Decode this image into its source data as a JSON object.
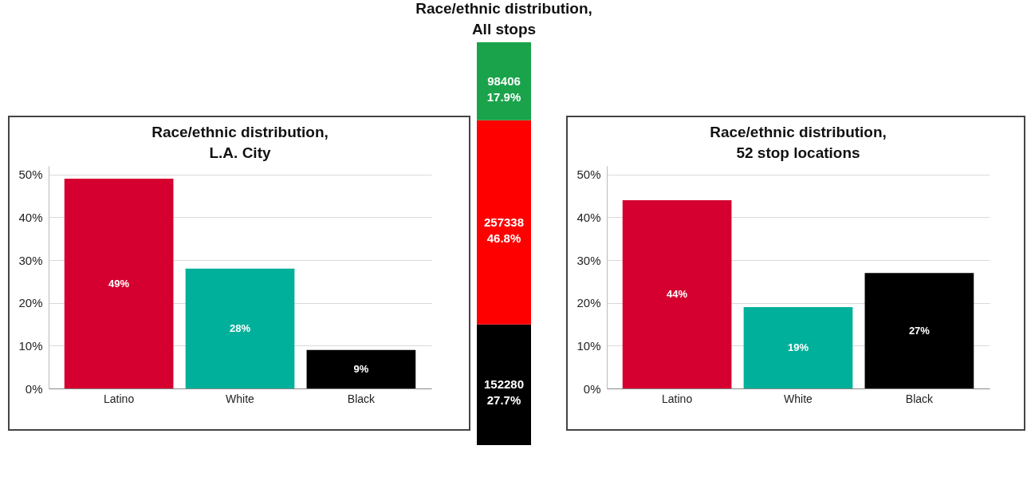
{
  "chart_data": [
    {
      "type": "bar",
      "title": "Race/ethnic distribution,\nL.A. City",
      "categories": [
        "Latino",
        "White",
        "Black"
      ],
      "values": [
        49,
        28,
        9
      ],
      "colors": [
        "#d5002f",
        "#00b09a",
        "#000000"
      ],
      "value_labels": [
        "49%",
        "28%",
        "9%"
      ],
      "ylim": [
        0,
        52
      ],
      "yticks": [
        {
          "value": 0,
          "label": "0%"
        },
        {
          "value": 10,
          "label": "10%"
        },
        {
          "value": 20,
          "label": "20%"
        },
        {
          "value": 30,
          "label": "30%"
        },
        {
          "value": 40,
          "label": "40%"
        },
        {
          "value": 50,
          "label": "50%"
        }
      ],
      "grid": "y"
    },
    {
      "type": "bar",
      "title": "Race/ethnic distribution,\nAll stops",
      "stacked": true,
      "categories": [
        null
      ],
      "series": [
        {
          "color": "#000000",
          "values": [
            152280
          ],
          "value_labels": [
            "152280\n27.7%"
          ]
        },
        {
          "color": "#ff0000",
          "values": [
            257338
          ],
          "value_labels": [
            "257338\n46.8%"
          ]
        },
        {
          "color": "#1aa34a",
          "values": [
            98406
          ],
          "value_labels": [
            "98406\n17.9%"
          ]
        }
      ],
      "ylim": [
        0,
        508024
      ],
      "tick_labels": false
    },
    {
      "type": "bar",
      "title": "Race/ethnic distribution,\n52 stop locations",
      "categories": [
        "Latino",
        "White",
        "Black"
      ],
      "values": [
        44,
        19,
        27
      ],
      "colors": [
        "#d5002f",
        "#00b09a",
        "#000000"
      ],
      "value_labels": [
        "44%",
        "19%",
        "27%"
      ],
      "ylim": [
        0,
        52
      ],
      "yticks": [
        {
          "value": 0,
          "label": "0%"
        },
        {
          "value": 10,
          "label": "10%"
        },
        {
          "value": 20,
          "label": "20%"
        },
        {
          "value": 30,
          "label": "30%"
        },
        {
          "value": 40,
          "label": "40%"
        },
        {
          "value": 50,
          "label": "50%"
        }
      ],
      "grid": "y"
    }
  ]
}
